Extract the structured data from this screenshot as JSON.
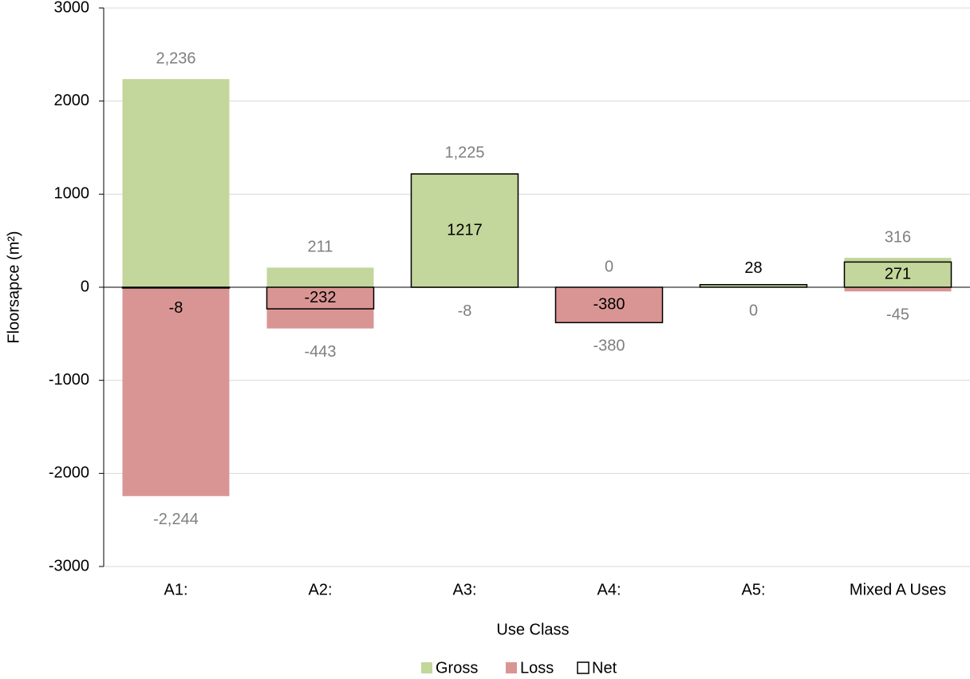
{
  "chart_data": {
    "type": "bar",
    "x_label": "Use Class",
    "y_label": "Floorsapce (m²)",
    "categories": [
      "A1:",
      "A2:",
      "A3:",
      "A4:",
      "A5:",
      "Mixed A Uses"
    ],
    "series": [
      {
        "name": "Gross",
        "color": "#c3d69b",
        "values": [
          2236,
          211,
          1225,
          0,
          28,
          316
        ],
        "value_labels": [
          "2,236",
          "211",
          "1,225",
          "0",
          null,
          "316"
        ]
      },
      {
        "name": "Loss",
        "color": "#d99594",
        "values": [
          -2244,
          -443,
          -8,
          -380,
          0,
          -45
        ],
        "value_labels": [
          "-2,244",
          "-443",
          "-8",
          "-380",
          "0",
          "-45"
        ]
      },
      {
        "name": "Net",
        "color": "#000000",
        "values": [
          -8,
          -232,
          1217,
          -380,
          28,
          271
        ]
      }
    ],
    "ylim": [
      -3000,
      3000
    ],
    "yticks": [
      -3000,
      -2000,
      -1000,
      0,
      1000,
      2000,
      3000
    ],
    "grid": true,
    "legend": "bottom"
  }
}
